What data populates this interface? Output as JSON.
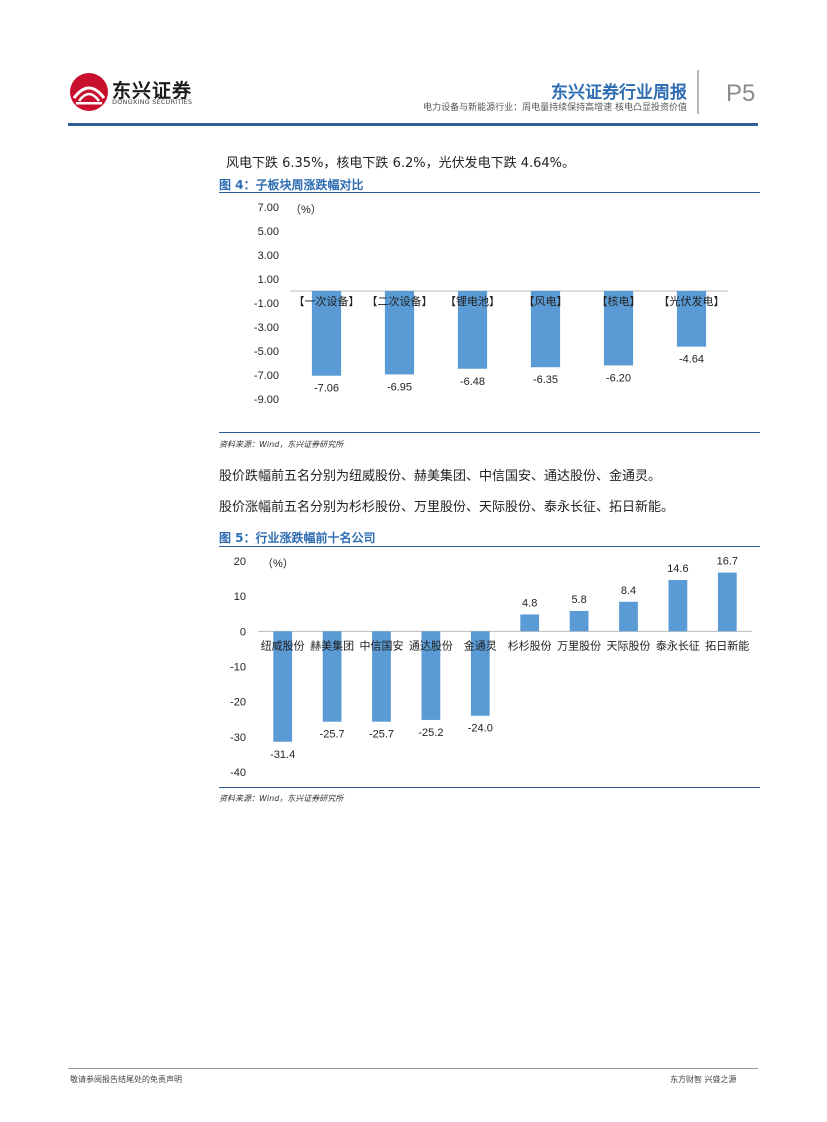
{
  "header": {
    "logo_cn": "东兴证券",
    "logo_en": "DONGXING SECURITIES",
    "brand_title": "东兴证券行业周报",
    "brand_subtitle": "电力设备与新能源行业：周电量持续保持高增速 核电凸显投资价值",
    "page_number": "P5"
  },
  "body": {
    "para1": "风电下跌 6.35%，核电下跌 6.2%，光伏发电下跌 4.64%。",
    "para2": "股价跌幅前五名分别为纽威股份、赫美集团、中信国安、通达股份、金通灵。",
    "para3": "股价涨幅前五名分别为杉杉股份、万里股份、天际股份、泰永长征、拓日新能。"
  },
  "figure4": {
    "caption": "图 4：子板块周涨跌幅对比",
    "source": "资料来源：Wind，东兴证券研究所"
  },
  "figure5": {
    "caption": "图 5：行业涨跌幅前十名公司",
    "source": "资料来源：Wind，东兴证券研究所"
  },
  "footer": {
    "left": "敬请参阅报告结尾处的免责声明",
    "right": "东方财智 兴盛之源"
  },
  "colors": {
    "bar": "#5b9bd5",
    "accent": "#2f6db3"
  },
  "chart_data": [
    {
      "type": "bar",
      "unit_label": "（%）",
      "categories": [
        "【一次设备】",
        "【二次设备】",
        "【锂电池】",
        "【风电】",
        "【核电】",
        "【光伏发电】"
      ],
      "values": [
        -7.06,
        -6.95,
        -6.48,
        -6.35,
        -6.2,
        -4.64
      ],
      "value_labels": [
        "-7.06",
        "-6.95",
        "-6.48",
        "-6.35",
        "-6.20",
        "-4.64"
      ],
      "yticks": [
        "7.00",
        "5.00",
        "3.00",
        "1.00",
        "-1.00",
        "-3.00",
        "-5.00",
        "-7.00",
        "-9.00"
      ],
      "ylim": [
        -9,
        7
      ]
    },
    {
      "type": "bar",
      "unit_label": "（%）",
      "categories": [
        "纽威股份",
        "赫美集团",
        "中信国安",
        "通达股份",
        "金通灵",
        "杉杉股份",
        "万里股份",
        "天际股份",
        "泰永长征",
        "拓日新能"
      ],
      "values": [
        -31.4,
        -25.7,
        -25.7,
        -25.2,
        -24.0,
        4.8,
        5.8,
        8.4,
        14.6,
        16.7
      ],
      "value_labels": [
        "-31.4",
        "-25.7",
        "-25.7",
        "-25.2",
        "-24.0",
        "4.8",
        "5.8",
        "8.4",
        "14.6",
        "16.7"
      ],
      "yticks": [
        "20",
        "10",
        "0",
        "-10",
        "-20",
        "-30",
        "-40"
      ],
      "ylim": [
        -40,
        20
      ]
    }
  ]
}
